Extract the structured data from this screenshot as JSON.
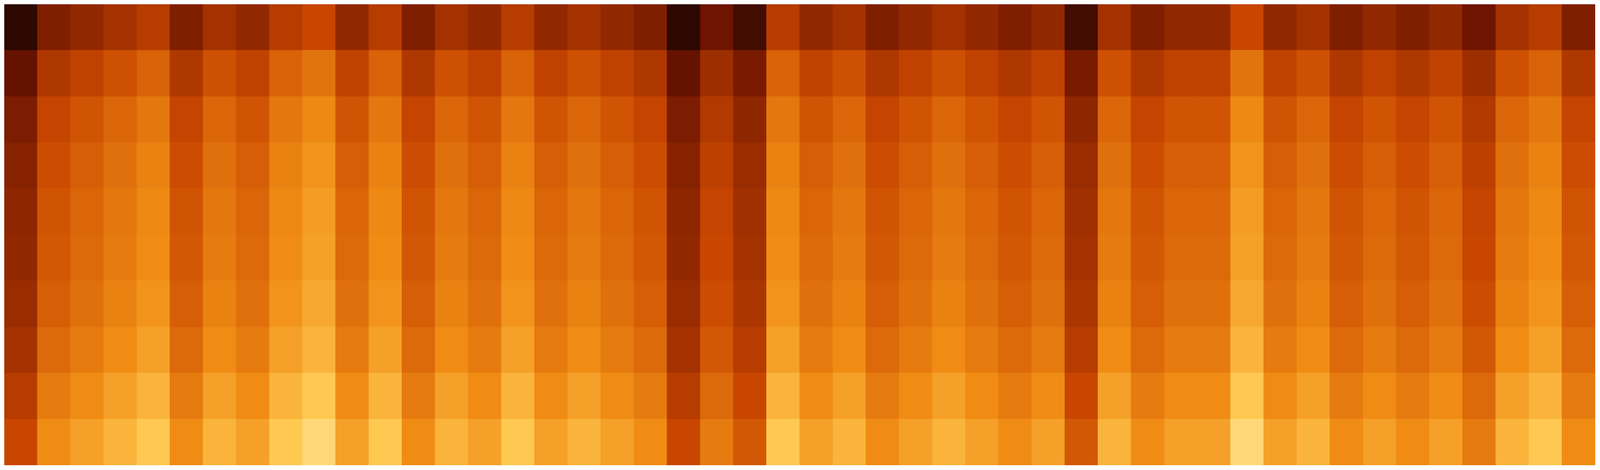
{
  "chart_data": {
    "type": "heatmap",
    "tick_labels": false,
    "xlim": [
      0,
      48
    ],
    "ylim": [
      0,
      10
    ],
    "zlim": [
      0,
      100
    ],
    "cells": [
      [
        10,
        30,
        35,
        40,
        45,
        30,
        40,
        35,
        45,
        50,
        35,
        45,
        30,
        40,
        35,
        45,
        35,
        40,
        35,
        30,
        10,
        25,
        15,
        45,
        35,
        40,
        30,
        35,
        40,
        35,
        30,
        35,
        15,
        40,
        30,
        35,
        35,
        50,
        35,
        40,
        30,
        35,
        30,
        35,
        25,
        40,
        45,
        30
      ],
      [
        23,
        43,
        48,
        53,
        58,
        43,
        53,
        48,
        58,
        63,
        48,
        58,
        43,
        53,
        48,
        58,
        48,
        53,
        48,
        43,
        23,
        38,
        28,
        58,
        48,
        53,
        43,
        48,
        53,
        48,
        43,
        48,
        28,
        53,
        43,
        48,
        48,
        63,
        48,
        53,
        43,
        48,
        43,
        48,
        38,
        53,
        58,
        43
      ],
      [
        29,
        49,
        54,
        59,
        64,
        49,
        59,
        54,
        64,
        69,
        54,
        64,
        49,
        59,
        54,
        64,
        54,
        59,
        54,
        49,
        29,
        44,
        34,
        64,
        54,
        59,
        49,
        54,
        59,
        54,
        49,
        54,
        34,
        59,
        49,
        54,
        54,
        69,
        54,
        59,
        49,
        54,
        49,
        54,
        44,
        59,
        64,
        49
      ],
      [
        32,
        52,
        57,
        62,
        67,
        52,
        62,
        57,
        67,
        72,
        57,
        67,
        52,
        62,
        57,
        67,
        57,
        62,
        57,
        52,
        32,
        47,
        37,
        67,
        57,
        62,
        52,
        57,
        62,
        57,
        52,
        57,
        37,
        62,
        52,
        57,
        57,
        72,
        57,
        62,
        52,
        57,
        52,
        57,
        47,
        62,
        67,
        52
      ],
      [
        34,
        54,
        59,
        64,
        69,
        54,
        64,
        59,
        69,
        74,
        59,
        69,
        54,
        64,
        59,
        69,
        59,
        64,
        59,
        54,
        34,
        49,
        39,
        69,
        59,
        64,
        54,
        59,
        64,
        59,
        54,
        59,
        39,
        64,
        54,
        59,
        59,
        74,
        59,
        64,
        54,
        59,
        54,
        59,
        49,
        64,
        69,
        54
      ],
      [
        35,
        55,
        60,
        65,
        70,
        55,
        65,
        60,
        70,
        75,
        60,
        70,
        55,
        65,
        60,
        70,
        60,
        65,
        60,
        55,
        35,
        50,
        40,
        70,
        60,
        65,
        55,
        60,
        65,
        60,
        55,
        60,
        40,
        65,
        55,
        60,
        60,
        75,
        60,
        65,
        55,
        60,
        55,
        60,
        50,
        65,
        70,
        55
      ],
      [
        37,
        57,
        62,
        67,
        72,
        57,
        67,
        62,
        72,
        77,
        62,
        72,
        57,
        67,
        62,
        72,
        62,
        67,
        62,
        57,
        37,
        52,
        42,
        72,
        62,
        67,
        57,
        62,
        67,
        62,
        57,
        62,
        42,
        67,
        57,
        62,
        62,
        77,
        62,
        67,
        57,
        62,
        57,
        62,
        52,
        67,
        72,
        57
      ],
      [
        40,
        60,
        65,
        70,
        75,
        60,
        70,
        65,
        75,
        80,
        65,
        75,
        60,
        70,
        65,
        75,
        65,
        70,
        65,
        60,
        40,
        55,
        45,
        75,
        65,
        70,
        60,
        65,
        70,
        65,
        60,
        65,
        45,
        70,
        60,
        65,
        65,
        80,
        65,
        70,
        60,
        65,
        60,
        65,
        55,
        70,
        75,
        60
      ],
      [
        45,
        65,
        70,
        75,
        80,
        65,
        75,
        70,
        80,
        85,
        70,
        80,
        65,
        75,
        70,
        80,
        70,
        75,
        70,
        65,
        45,
        60,
        50,
        80,
        70,
        75,
        65,
        70,
        75,
        70,
        65,
        70,
        50,
        75,
        65,
        70,
        70,
        85,
        70,
        75,
        65,
        70,
        65,
        70,
        60,
        75,
        80,
        65
      ],
      [
        50,
        70,
        75,
        80,
        85,
        70,
        80,
        75,
        85,
        90,
        75,
        85,
        70,
        80,
        75,
        85,
        75,
        80,
        75,
        70,
        50,
        65,
        55,
        85,
        75,
        80,
        70,
        75,
        80,
        75,
        70,
        75,
        55,
        80,
        70,
        75,
        75,
        90,
        75,
        80,
        70,
        75,
        70,
        75,
        65,
        80,
        85,
        70
      ]
    ]
  }
}
